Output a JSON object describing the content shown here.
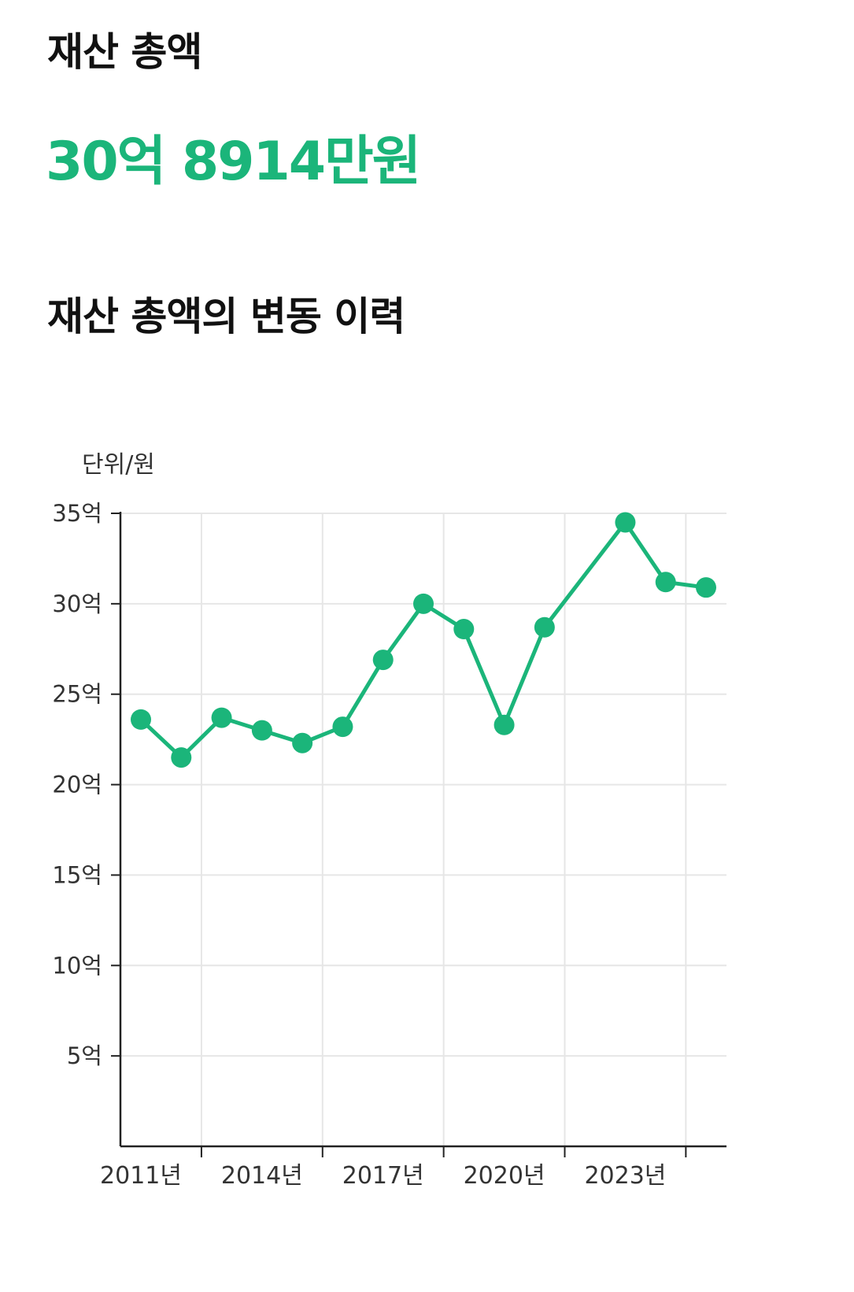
{
  "header": {
    "title": "재산 총액",
    "total_amount": "30억 8914만원",
    "history_title": "재산 총액의 변동 이력"
  },
  "colors": {
    "accent": "#1bb57a",
    "grid": "#e6e6e6",
    "axis": "#222222",
    "text": "#111111",
    "tick_text": "#333333"
  },
  "chart_data": {
    "type": "line",
    "title": "",
    "unit_label": "단위/원",
    "xlabel": "",
    "ylabel": "",
    "grid": true,
    "x_tick_labels": [
      "2011년",
      "2014년",
      "2017년",
      "2020년",
      "2023년"
    ],
    "y_tick_labels": [
      "5억",
      "10억",
      "15억",
      "20억",
      "25억",
      "30억",
      "35억"
    ],
    "y_ticks": [
      5,
      10,
      15,
      20,
      25,
      30,
      35
    ],
    "ylim": [
      0,
      35
    ],
    "x": [
      2011,
      2012,
      2013,
      2014,
      2015,
      2016,
      2017,
      2018,
      2019,
      2020,
      2021,
      2022,
      2023,
      2024,
      2025
    ],
    "series": [
      {
        "values": [
          23.6,
          21.5,
          23.7,
          23.0,
          22.3,
          23.2,
          26.9,
          30.0,
          28.6,
          23.3,
          28.7,
          null,
          34.5,
          31.2,
          30.9
        ]
      }
    ]
  }
}
